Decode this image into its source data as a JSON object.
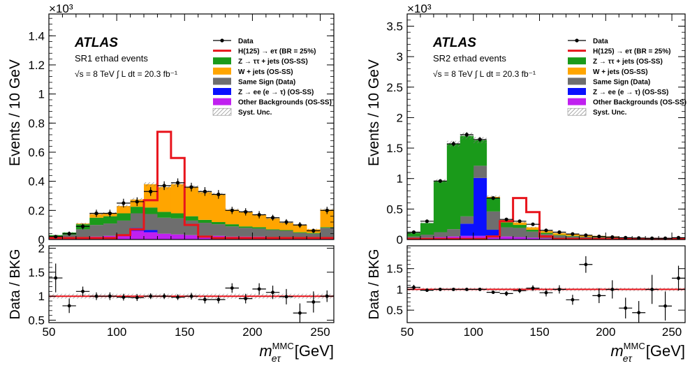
{
  "figure": {
    "legend_entries": [
      {
        "label": "Data",
        "style": "data",
        "color": "#000000"
      },
      {
        "label": "H(125) → eτ  (BR = 25%)",
        "style": "line",
        "color": "#e8141c"
      },
      {
        "label": "Z → ττ + jets (OS-SS)",
        "style": "fill",
        "color": "#1a9a1a"
      },
      {
        "label": "W + jets (OS-SS)",
        "style": "fill",
        "color": "#ffa500"
      },
      {
        "label": "Same Sign (Data)",
        "style": "fill",
        "color": "#6e6e6e"
      },
      {
        "label": "Z → ee (e → τ) (OS-SS)",
        "style": "fill",
        "color": "#0a10ff"
      },
      {
        "label": "Other Backgrounds (OS-SS)",
        "style": "fill",
        "color": "#c020f0"
      },
      {
        "label": "Syst. Unc.",
        "style": "hatch",
        "color": "#888888"
      }
    ],
    "atlas_label": "ATLAS",
    "energy_text": "√s = 8 TeV",
    "lumi_text": "∫ L dt = 20.3 fb⁻¹",
    "y_label": "Events / 10 GeV",
    "ratio_y_label": "Data / BKG",
    "x_label_main": "m",
    "x_label_sup": "MMC",
    "x_label_sub": "eτ",
    "x_label_unit": "[GeV]",
    "exponent_label": "×10³"
  },
  "chart_data": [
    {
      "type": "bar",
      "panel": "left",
      "region_label": "SR1 eτhad events",
      "x_edges": [
        50,
        60,
        70,
        80,
        90,
        100,
        110,
        120,
        130,
        140,
        150,
        160,
        170,
        180,
        190,
        200,
        210,
        220,
        230,
        240,
        250,
        260
      ],
      "xlim": [
        50,
        260
      ],
      "ylim": [
        0,
        1.55
      ],
      "yticks": [
        0,
        0.2,
        0.4,
        0.6,
        0.8,
        1,
        1.2,
        1.4
      ],
      "ytick_labels": [
        "0",
        "0.2",
        "0.4",
        "0.6",
        "0.8",
        "1",
        "1.2",
        "1.4"
      ],
      "xticks": [
        50,
        100,
        150,
        200,
        250
      ],
      "xtick_labels": [
        "50",
        "100",
        "150",
        "200",
        "250"
      ],
      "series": [
        {
          "name": "Other Backgrounds (OS-SS)",
          "color": "#c020f0",
          "values": [
            0.005,
            0.008,
            0.015,
            0.02,
            0.025,
            0.03,
            0.06,
            0.05,
            0.04,
            0.035,
            0.03,
            0.025,
            0.025,
            0.02,
            0.02,
            0.02,
            0.015,
            0.015,
            0.01,
            0.01,
            0.01
          ]
        },
        {
          "name": "Z → ee (e → τ) (OS-SS)",
          "color": "#0a10ff",
          "values": [
            0,
            0,
            0,
            0,
            0,
            0,
            0.02,
            0.015,
            0,
            0,
            0,
            0,
            0,
            0,
            0,
            0,
            0,
            0,
            0,
            0,
            0
          ]
        },
        {
          "name": "Same Sign (Data)",
          "color": "#6e6e6e",
          "values": [
            0.015,
            0.025,
            0.055,
            0.08,
            0.085,
            0.1,
            0.1,
            0.11,
            0.11,
            0.11,
            0.1,
            0.09,
            0.08,
            0.07,
            0.06,
            0.055,
            0.05,
            0.045,
            0.035,
            0.03,
            0.07
          ]
        },
        {
          "name": "Z → ττ + jets (OS-SS)",
          "color": "#1a9a1a",
          "values": [
            0.01,
            0.015,
            0.035,
            0.05,
            0.05,
            0.05,
            0.045,
            0.045,
            0.04,
            0.035,
            0.03,
            0.02,
            0.015,
            0.015,
            0.01,
            0.01,
            0.005,
            0.005,
            0.005,
            0.005,
            0.005
          ]
        },
        {
          "name": "W + jets (OS-SS)",
          "color": "#ffa500",
          "values": [
            0,
            0,
            0.005,
            0.025,
            0.02,
            0.05,
            0.05,
            0.16,
            0.17,
            0.2,
            0.2,
            0.19,
            0.19,
            0.1,
            0.1,
            0.085,
            0.075,
            0.05,
            0.05,
            0.025,
            0.12
          ]
        }
      ],
      "signal": {
        "name": "H(125) → eτ (BR = 25%)",
        "color": "#e8141c",
        "values": [
          0.01,
          0.01,
          0.01,
          0.01,
          0.01,
          0.03,
          0.07,
          0.27,
          0.74,
          0.56,
          0.1,
          0.02,
          0.01,
          0.01,
          0.01,
          0.01,
          0.01,
          0.01,
          0.01,
          0.01,
          0.01
        ]
      },
      "data": {
        "values": [
          0.02,
          0.04,
          0.09,
          0.18,
          0.18,
          0.25,
          0.26,
          0.33,
          0.37,
          0.39,
          0.36,
          0.33,
          0.31,
          0.2,
          0.19,
          0.17,
          0.15,
          0.12,
          0.1,
          0.06,
          0.2
        ],
        "errors": [
          0.01,
          0.015,
          0.02,
          0.025,
          0.025,
          0.03,
          0.03,
          0.03,
          0.03,
          0.03,
          0.03,
          0.03,
          0.03,
          0.025,
          0.025,
          0.025,
          0.02,
          0.02,
          0.02,
          0.015,
          0.025
        ]
      },
      "ratio": {
        "ylim": [
          0.45,
          2.05
        ],
        "yticks": [
          0.5,
          1,
          1.5,
          2
        ],
        "ytick_labels": [
          "0.5",
          "1",
          "1.5",
          "2"
        ],
        "values": [
          1.38,
          0.8,
          1.1,
          1.0,
          1.0,
          0.98,
          0.97,
          1.0,
          1.0,
          0.98,
          1.0,
          0.93,
          0.93,
          1.17,
          0.95,
          1.15,
          1.08,
          0.99,
          0.65,
          0.88,
          1.0
        ],
        "errors": [
          0.3,
          0.15,
          0.1,
          0.08,
          0.08,
          0.07,
          0.07,
          0.06,
          0.06,
          0.06,
          0.07,
          0.08,
          0.08,
          0.1,
          0.1,
          0.12,
          0.14,
          0.16,
          0.2,
          0.22,
          0.12
        ],
        "band": 0.05
      }
    },
    {
      "type": "bar",
      "panel": "right",
      "region_label": "SR2 eτhad events",
      "x_edges": [
        50,
        60,
        70,
        80,
        90,
        100,
        110,
        120,
        130,
        140,
        150,
        160,
        170,
        180,
        190,
        200,
        210,
        220,
        230,
        240,
        250,
        260
      ],
      "xlim": [
        50,
        260
      ],
      "ylim": [
        0,
        3.7
      ],
      "yticks": [
        0,
        0.5,
        1,
        1.5,
        2,
        2.5,
        3,
        3.5
      ],
      "ytick_labels": [
        "0",
        "0.5",
        "1",
        "1.5",
        "2",
        "2.5",
        "3",
        "3.5"
      ],
      "xticks": [
        50,
        100,
        150,
        200,
        250
      ],
      "xtick_labels": [
        "50",
        "100",
        "150",
        "200",
        "250"
      ],
      "series": [
        {
          "name": "Other Backgrounds (OS-SS)",
          "color": "#c020f0",
          "values": [
            0.02,
            0.03,
            0.04,
            0.05,
            0.06,
            0.06,
            0.06,
            0.05,
            0.04,
            0.03,
            0.02,
            0.015,
            0.01,
            0.01,
            0.01,
            0.01,
            0.005,
            0.005,
            0.005,
            0.005,
            0.005
          ]
        },
        {
          "name": "Z → ee (e → τ) (OS-SS)",
          "color": "#0a10ff",
          "values": [
            0,
            0,
            0,
            0,
            0.2,
            0.95,
            0.1,
            0,
            0,
            0,
            0,
            0,
            0,
            0,
            0,
            0,
            0,
            0,
            0,
            0,
            0
          ]
        },
        {
          "name": "Same Sign (Data)",
          "color": "#6e6e6e",
          "values": [
            0.03,
            0.05,
            0.08,
            0.12,
            0.12,
            0.2,
            0.3,
            0.15,
            0.15,
            0.1,
            0.07,
            0.05,
            0.04,
            0.03,
            0.025,
            0.02,
            0.015,
            0.015,
            0.01,
            0.01,
            0.01
          ]
        },
        {
          "name": "Z → ττ + jets (OS-SS)",
          "color": "#1a9a1a",
          "values": [
            0.06,
            0.19,
            0.84,
            1.4,
            1.32,
            0.42,
            0.22,
            0.08,
            0.05,
            0.03,
            0.02,
            0.01,
            0.01,
            0.005,
            0.005,
            0.005,
            0,
            0,
            0,
            0,
            0
          ]
        },
        {
          "name": "W + jets (OS-SS)",
          "color": "#ffa500",
          "values": [
            0,
            0,
            0,
            0,
            0,
            0,
            0.02,
            0.04,
            0.04,
            0.04,
            0.03,
            0.03,
            0.03,
            0.02,
            0.02,
            0.015,
            0.01,
            0.01,
            0.01,
            0.01,
            0.01
          ]
        }
      ],
      "signal": {
        "name": "H(125) → eτ (BR = 25%)",
        "color": "#e8141c",
        "values": [
          0.01,
          0.01,
          0.01,
          0.01,
          0.01,
          0.01,
          0.05,
          0.3,
          0.68,
          0.45,
          0.05,
          0.01,
          0.01,
          0.01,
          0.01,
          0.01,
          0.01,
          0.01,
          0.01,
          0.01,
          0.01
        ]
      },
      "data": {
        "values": [
          0.12,
          0.3,
          0.96,
          1.57,
          1.72,
          1.64,
          0.68,
          0.33,
          0.3,
          0.25,
          0.15,
          0.12,
          0.09,
          0.07,
          0.05,
          0.04,
          0.03,
          0.025,
          0.02,
          0.02,
          0.03
        ],
        "errors": [
          0.015,
          0.025,
          0.03,
          0.04,
          0.04,
          0.04,
          0.03,
          0.02,
          0.02,
          0.02,
          0.015,
          0.015,
          0.012,
          0.01,
          0.01,
          0.008,
          0.007,
          0.006,
          0.006,
          0.006,
          0.007
        ]
      },
      "ratio": {
        "ylim": [
          0.2,
          2.05
        ],
        "yticks": [
          0.5,
          1,
          1.5
        ],
        "ytick_labels": [
          "0.5",
          "1",
          "1.5"
        ],
        "values": [
          1.05,
          0.98,
          1.0,
          1.0,
          1.0,
          1.0,
          0.93,
          0.9,
          0.97,
          1.03,
          0.92,
          1.0,
          0.75,
          1.6,
          0.85,
          1.0,
          0.55,
          0.44,
          1.0,
          0.6,
          1.27
        ],
        "errors": [
          0.06,
          0.04,
          0.03,
          0.02,
          0.02,
          0.02,
          0.04,
          0.06,
          0.06,
          0.07,
          0.09,
          0.1,
          0.12,
          0.2,
          0.18,
          0.22,
          0.25,
          0.28,
          0.35,
          0.35,
          0.3
        ],
        "band": 0.04
      }
    }
  ]
}
